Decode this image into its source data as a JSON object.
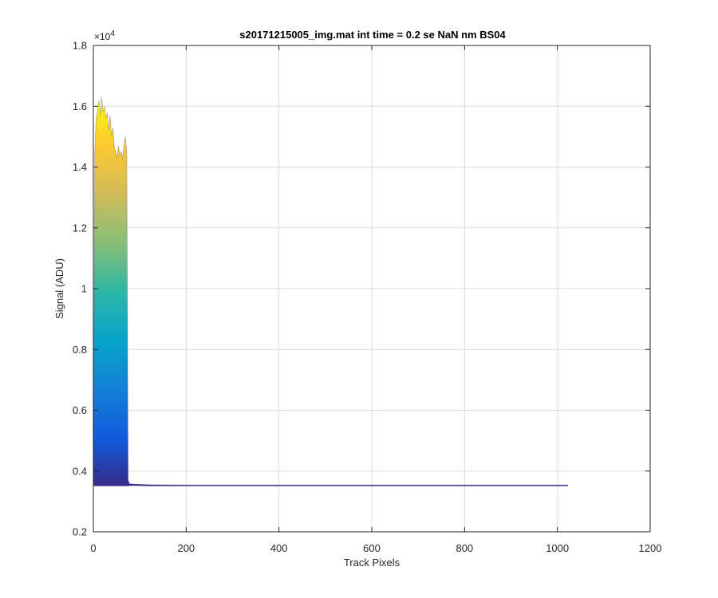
{
  "chart_data": {
    "type": "line",
    "title": "s20171215005_img.mat int time = 0.2 se  NaN nm BS04",
    "xlabel": "Track Pixels",
    "ylabel": "Signal (ADU)",
    "xlim": [
      0,
      1200
    ],
    "ylim": [
      0.2,
      1.8
    ],
    "y_exponent_label": "×10",
    "y_exponent_power": "4",
    "xticks": [
      0,
      200,
      400,
      600,
      800,
      1000,
      1200
    ],
    "xtick_labels": [
      "0",
      "200",
      "400",
      "600",
      "800",
      "1000",
      "1200"
    ],
    "yticks": [
      0.2,
      0.4,
      0.6,
      0.8,
      1.0,
      1.2,
      1.4,
      1.6,
      1.8
    ],
    "ytick_labels": [
      "0.2",
      "0.4",
      "0.6",
      "0.8",
      "1",
      "1.2",
      "1.4",
      "1.6",
      "1.8"
    ],
    "grid": true,
    "colormap": [
      "#352a87",
      "#0f5cdd",
      "#1481d6",
      "#06a4ca",
      "#2eb7a4",
      "#87bf77",
      "#d1bb59",
      "#fec832",
      "#f9fb0e"
    ],
    "series": [
      {
        "description": "many overlapping traces rendered with a height-mapped colormap",
        "x": [
          0,
          3,
          6,
          9,
          12,
          15,
          18,
          21,
          24,
          27,
          30,
          33,
          36,
          39,
          42,
          45,
          48,
          51,
          54,
          57,
          60,
          63,
          66,
          69,
          72,
          75,
          78,
          90,
          120,
          200,
          400,
          600,
          800,
          1000,
          1023
        ],
        "y_max": [
          0.36,
          1.45,
          1.56,
          1.59,
          1.62,
          1.57,
          1.63,
          1.58,
          1.6,
          1.56,
          1.58,
          1.52,
          1.57,
          1.5,
          1.53,
          1.47,
          1.45,
          1.43,
          1.47,
          1.44,
          1.45,
          1.43,
          1.47,
          1.5,
          1.45,
          0.37,
          0.358,
          0.357,
          0.355,
          0.354,
          0.354,
          0.354,
          0.354,
          0.354,
          0.354
        ],
        "y_min": [
          0.352,
          0.352,
          0.352,
          0.352,
          0.352,
          0.352,
          0.352,
          0.352,
          0.352,
          0.352,
          0.352,
          0.352,
          0.352,
          0.352,
          0.352,
          0.352,
          0.352,
          0.352,
          0.352,
          0.352,
          0.352,
          0.352,
          0.352,
          0.352,
          0.352,
          0.352,
          0.353,
          0.353,
          0.352,
          0.352,
          0.352,
          0.352,
          0.352,
          0.352,
          0.352
        ]
      }
    ]
  }
}
